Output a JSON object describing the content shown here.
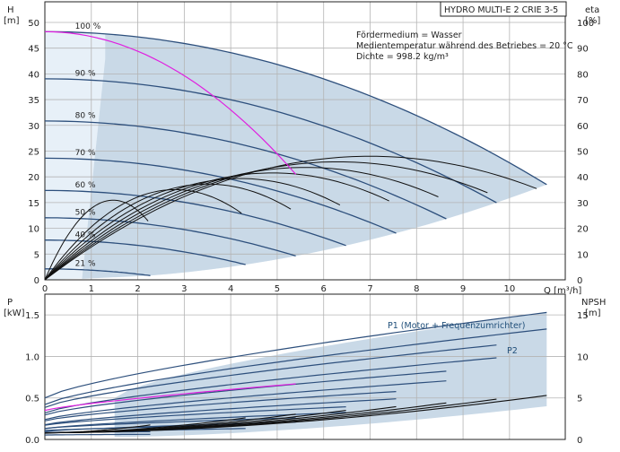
{
  "colors": {
    "grid": "#b4b4b4",
    "envelope": "#c9d9e7",
    "envelope_light": "#e7f0f8",
    "curve": "#2d4f7c",
    "eff": "#111111",
    "npsh": "#111111",
    "magenta": "#e020e0",
    "frame": "#222222"
  },
  "header": {
    "product": "HYDRO MULTI-E 2 CRIE 3-5",
    "notes": [
      "Fördermedium = Wasser",
      "Medientemperatur während des Betriebes = 20 °C",
      "Dichte = 998.2 kg/m³"
    ]
  },
  "axes": {
    "head_label_top": "H",
    "head_label_unit": "[m]",
    "eta_label_top": "eta",
    "eta_label_unit": "[%]",
    "q_label": "Q [m³/h]",
    "power_label_top": "P",
    "power_label_unit": "[kW]",
    "npsh_label_top": "NPSH",
    "npsh_label_unit": "[m]"
  },
  "chart_data": [
    {
      "type": "line",
      "name": "head",
      "x_ticks": [
        0,
        1,
        2,
        3,
        4,
        5,
        6,
        7,
        8,
        9,
        10
      ],
      "xlim": [
        0,
        11.2
      ],
      "y_ticks": [
        0,
        5,
        10,
        15,
        20,
        25,
        30,
        35,
        40,
        45,
        50
      ],
      "ylim": [
        0,
        54
      ],
      "y2_ticks": [
        0,
        10,
        20,
        30,
        40,
        50,
        60,
        70,
        80,
        90,
        100
      ],
      "speed_labels": [
        "100 %",
        "90 %",
        "80 %",
        "70 %",
        "60 %",
        "50 %",
        "40 %",
        "21 %"
      ],
      "speed_fractions": [
        1.0,
        0.9,
        0.8,
        0.7,
        0.6,
        0.5,
        0.4,
        0.21
      ],
      "qmax_100": 10.8,
      "h0_100": 48.2,
      "h_end_100": 18.5,
      "efficiency_peak": 48,
      "efficiency_bep_q": 7.0
    },
    {
      "type": "line",
      "name": "power",
      "x_ticks": [
        0,
        1,
        2,
        3,
        4,
        5,
        6,
        7,
        8,
        9,
        10
      ],
      "xlim": [
        0,
        11.2
      ],
      "y_ticks": [
        0,
        0.5,
        1.0,
        1.5
      ],
      "y_tick_labels": [
        "0.0",
        "0.5",
        "1.0",
        "1.5"
      ],
      "ylim": [
        0,
        1.75
      ],
      "y2_ticks": [
        0,
        5,
        10,
        15
      ],
      "series_labels": [
        "P1 (Motor + Frequenzumrichter)",
        "P2"
      ],
      "p1_start": 0.5,
      "p1_end": 1.53,
      "p2_start": 0.42,
      "p2_end": 1.33,
      "npsh_end": 4.5
    }
  ]
}
